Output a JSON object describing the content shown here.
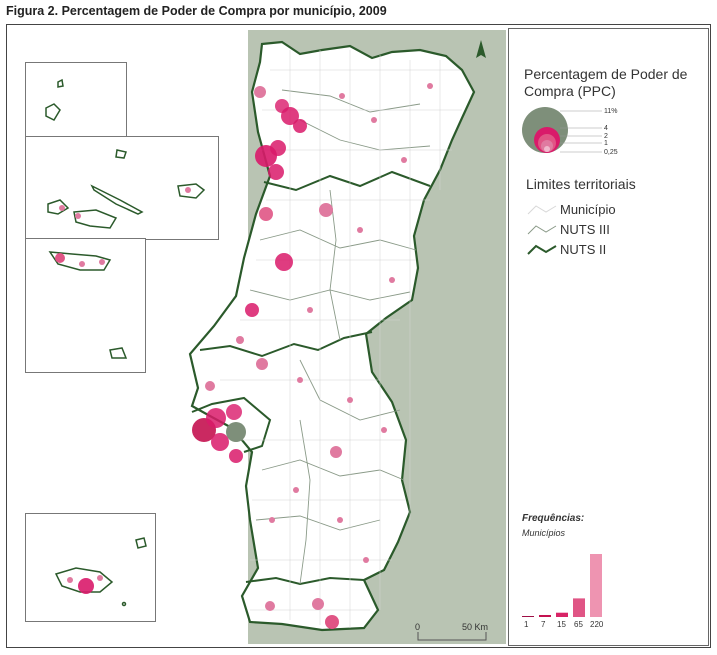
{
  "figure_title": "Figura 2. Percentagem de Poder de Compra por município, 2009",
  "legend": {
    "title": "Percentagem de Poder de Compra (PPC)",
    "size_labels": [
      "11%",
      "4",
      "2",
      "1",
      "0,25"
    ],
    "limits_title": "Limites territoriais",
    "limits": [
      "Município",
      "NUTS III",
      "NUTS II"
    ]
  },
  "frequencies": {
    "title": "Frequências:",
    "subtitle": "Municípios",
    "categories": [
      "1",
      "7",
      "15",
      "65",
      "220"
    ],
    "counts": [
      1,
      7,
      15,
      65,
      220
    ],
    "colors": [
      "#9e0f46",
      "#c41250",
      "#d82466",
      "#e05585",
      "#ee94b1"
    ]
  },
  "scale": {
    "min_label": "0",
    "max_label": "50 Km"
  },
  "colors": {
    "sea": "#b9c4b3",
    "land": "#ffffff",
    "border": "#2b5a2b",
    "circle_main": "#d91a6a",
    "circle_light": "#e07aa0",
    "lisbon_core": "#7e8f7a"
  }
}
